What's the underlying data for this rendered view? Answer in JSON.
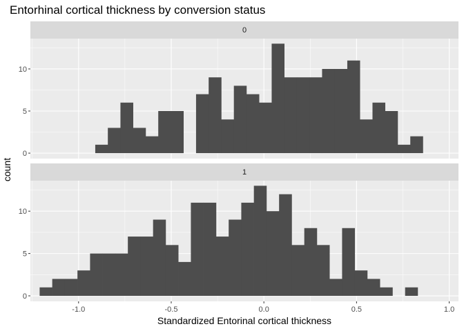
{
  "chart_data": {
    "type": "bar",
    "subtype": "faceted-histogram",
    "title": "Entorhinal cortical thickness by conversion status",
    "xlabel": "Standardized Entorinal cortical thickness",
    "ylabel": "count",
    "xlim": [
      -1.26,
      1.05
    ],
    "ylim": [
      -0.65,
      13.6
    ],
    "x_ticks": [
      -1.0,
      -0.5,
      0.0,
      0.5,
      1.0
    ],
    "x_tick_labels": [
      "-1.0",
      "-0.5",
      "0.0",
      "0.5",
      "1.0"
    ],
    "y_ticks": [
      0,
      5,
      10
    ],
    "y_tick_labels": [
      "0",
      "5",
      "10"
    ],
    "bin_width": 0.068,
    "grid": true,
    "bar_color": "#4d4d4d",
    "panel_background": "#ebebeb",
    "strip_background": "#d9d9d9",
    "gridline_color": "#ffffff",
    "facets": [
      {
        "label": "0",
        "bins": [
          {
            "x0": -0.91,
            "x1": -0.842,
            "count": 1
          },
          {
            "x0": -0.842,
            "x1": -0.774,
            "count": 3
          },
          {
            "x0": -0.774,
            "x1": -0.706,
            "count": 6
          },
          {
            "x0": -0.706,
            "x1": -0.638,
            "count": 3
          },
          {
            "x0": -0.638,
            "x1": -0.57,
            "count": 2
          },
          {
            "x0": -0.57,
            "x1": -0.502,
            "count": 5
          },
          {
            "x0": -0.502,
            "x1": -0.434,
            "count": 5
          },
          {
            "x0": -0.434,
            "x1": -0.366,
            "count": 0
          },
          {
            "x0": -0.366,
            "x1": -0.298,
            "count": 7
          },
          {
            "x0": -0.298,
            "x1": -0.23,
            "count": 9
          },
          {
            "x0": -0.23,
            "x1": -0.162,
            "count": 4
          },
          {
            "x0": -0.162,
            "x1": -0.094,
            "count": 8
          },
          {
            "x0": -0.094,
            "x1": -0.026,
            "count": 7
          },
          {
            "x0": -0.026,
            "x1": 0.042,
            "count": 6
          },
          {
            "x0": 0.042,
            "x1": 0.11,
            "count": 13
          },
          {
            "x0": 0.11,
            "x1": 0.178,
            "count": 9
          },
          {
            "x0": 0.178,
            "x1": 0.246,
            "count": 9
          },
          {
            "x0": 0.246,
            "x1": 0.314,
            "count": 9
          },
          {
            "x0": 0.314,
            "x1": 0.382,
            "count": 10
          },
          {
            "x0": 0.382,
            "x1": 0.45,
            "count": 10
          },
          {
            "x0": 0.45,
            "x1": 0.518,
            "count": 11
          },
          {
            "x0": 0.518,
            "x1": 0.586,
            "count": 4
          },
          {
            "x0": 0.586,
            "x1": 0.654,
            "count": 6
          },
          {
            "x0": 0.654,
            "x1": 0.722,
            "count": 5
          },
          {
            "x0": 0.722,
            "x1": 0.79,
            "count": 1
          },
          {
            "x0": 0.79,
            "x1": 0.858,
            "count": 2
          }
        ]
      },
      {
        "label": "1",
        "bins": [
          {
            "x0": -1.21,
            "x1": -1.142,
            "count": 1
          },
          {
            "x0": -1.142,
            "x1": -1.074,
            "count": 2
          },
          {
            "x0": -1.074,
            "x1": -1.006,
            "count": 2
          },
          {
            "x0": -1.006,
            "x1": -0.938,
            "count": 3
          },
          {
            "x0": -0.938,
            "x1": -0.87,
            "count": 5
          },
          {
            "x0": -0.87,
            "x1": -0.802,
            "count": 5
          },
          {
            "x0": -0.802,
            "x1": -0.734,
            "count": 5
          },
          {
            "x0": -0.734,
            "x1": -0.666,
            "count": 7
          },
          {
            "x0": -0.666,
            "x1": -0.598,
            "count": 7
          },
          {
            "x0": -0.598,
            "x1": -0.53,
            "count": 9
          },
          {
            "x0": -0.53,
            "x1": -0.462,
            "count": 6
          },
          {
            "x0": -0.462,
            "x1": -0.394,
            "count": 4
          },
          {
            "x0": -0.394,
            "x1": -0.326,
            "count": 11
          },
          {
            "x0": -0.326,
            "x1": -0.258,
            "count": 11
          },
          {
            "x0": -0.258,
            "x1": -0.19,
            "count": 7
          },
          {
            "x0": -0.19,
            "x1": -0.122,
            "count": 9
          },
          {
            "x0": -0.122,
            "x1": -0.054,
            "count": 11
          },
          {
            "x0": -0.054,
            "x1": 0.014,
            "count": 13
          },
          {
            "x0": 0.014,
            "x1": 0.082,
            "count": 10
          },
          {
            "x0": 0.082,
            "x1": 0.15,
            "count": 12
          },
          {
            "x0": 0.15,
            "x1": 0.218,
            "count": 6
          },
          {
            "x0": 0.218,
            "x1": 0.286,
            "count": 8
          },
          {
            "x0": 0.286,
            "x1": 0.354,
            "count": 6
          },
          {
            "x0": 0.354,
            "x1": 0.422,
            "count": 2
          },
          {
            "x0": 0.422,
            "x1": 0.49,
            "count": 8
          },
          {
            "x0": 0.49,
            "x1": 0.558,
            "count": 3
          },
          {
            "x0": 0.558,
            "x1": 0.626,
            "count": 2
          },
          {
            "x0": 0.626,
            "x1": 0.694,
            "count": 1
          },
          {
            "x0": 0.694,
            "x1": 0.762,
            "count": 0
          },
          {
            "x0": 0.762,
            "x1": 0.83,
            "count": 1
          }
        ]
      }
    ]
  }
}
